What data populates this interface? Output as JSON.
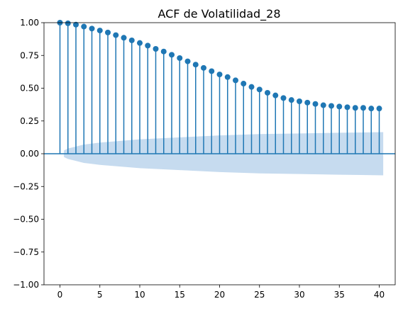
{
  "chart_data": {
    "type": "stem",
    "title": "ACF de Volatilidad_28",
    "xlabel": "",
    "ylabel": "",
    "xlim": [
      -2,
      42
    ],
    "ylim": [
      -1.0,
      1.0
    ],
    "x_ticks": [
      0,
      5,
      10,
      15,
      20,
      25,
      30,
      35,
      40
    ],
    "x_tick_labels": [
      "0",
      "5",
      "10",
      "15",
      "20",
      "25",
      "30",
      "35",
      "40"
    ],
    "y_ticks": [
      -1.0,
      -0.75,
      -0.5,
      -0.25,
      0.0,
      0.25,
      0.5,
      0.75,
      1.0
    ],
    "y_tick_labels": [
      "−1.00",
      "−0.75",
      "−0.50",
      "−0.25",
      "0.00",
      "0.25",
      "0.50",
      "0.75",
      "1.00"
    ],
    "grid": false,
    "series": [
      {
        "lags": [
          0,
          1,
          2,
          3,
          4,
          5,
          6,
          7,
          8,
          9,
          10,
          11,
          12,
          13,
          14,
          15,
          16,
          17,
          18,
          19,
          20,
          21,
          22,
          23,
          24,
          25,
          26,
          27,
          28,
          29,
          30,
          31,
          32,
          33,
          34,
          35,
          36,
          37,
          38,
          39,
          40
        ],
        "values": [
          1.0,
          0.995,
          0.985,
          0.97,
          0.955,
          0.94,
          0.925,
          0.905,
          0.885,
          0.865,
          0.845,
          0.825,
          0.8,
          0.78,
          0.755,
          0.73,
          0.705,
          0.68,
          0.655,
          0.63,
          0.605,
          0.585,
          0.56,
          0.535,
          0.51,
          0.49,
          0.465,
          0.445,
          0.425,
          0.41,
          0.4,
          0.39,
          0.38,
          0.37,
          0.365,
          0.36,
          0.355,
          0.35,
          0.35,
          0.345,
          0.345
        ]
      }
    ],
    "confidence_band": {
      "lags": [
        0.5,
        1,
        2,
        3,
        5,
        8,
        10,
        15,
        20,
        25,
        30,
        35,
        40.5
      ],
      "upper": [
        0.025,
        0.04,
        0.055,
        0.07,
        0.085,
        0.1,
        0.11,
        0.125,
        0.14,
        0.15,
        0.155,
        0.16,
        0.165
      ],
      "lower": [
        -0.025,
        -0.04,
        -0.055,
        -0.07,
        -0.085,
        -0.1,
        -0.11,
        -0.125,
        -0.14,
        -0.15,
        -0.155,
        -0.16,
        -0.165
      ]
    },
    "colors": {
      "stem": "#1f77b4",
      "band": "#c6dbef",
      "zero_line": "#1f77b4"
    }
  }
}
